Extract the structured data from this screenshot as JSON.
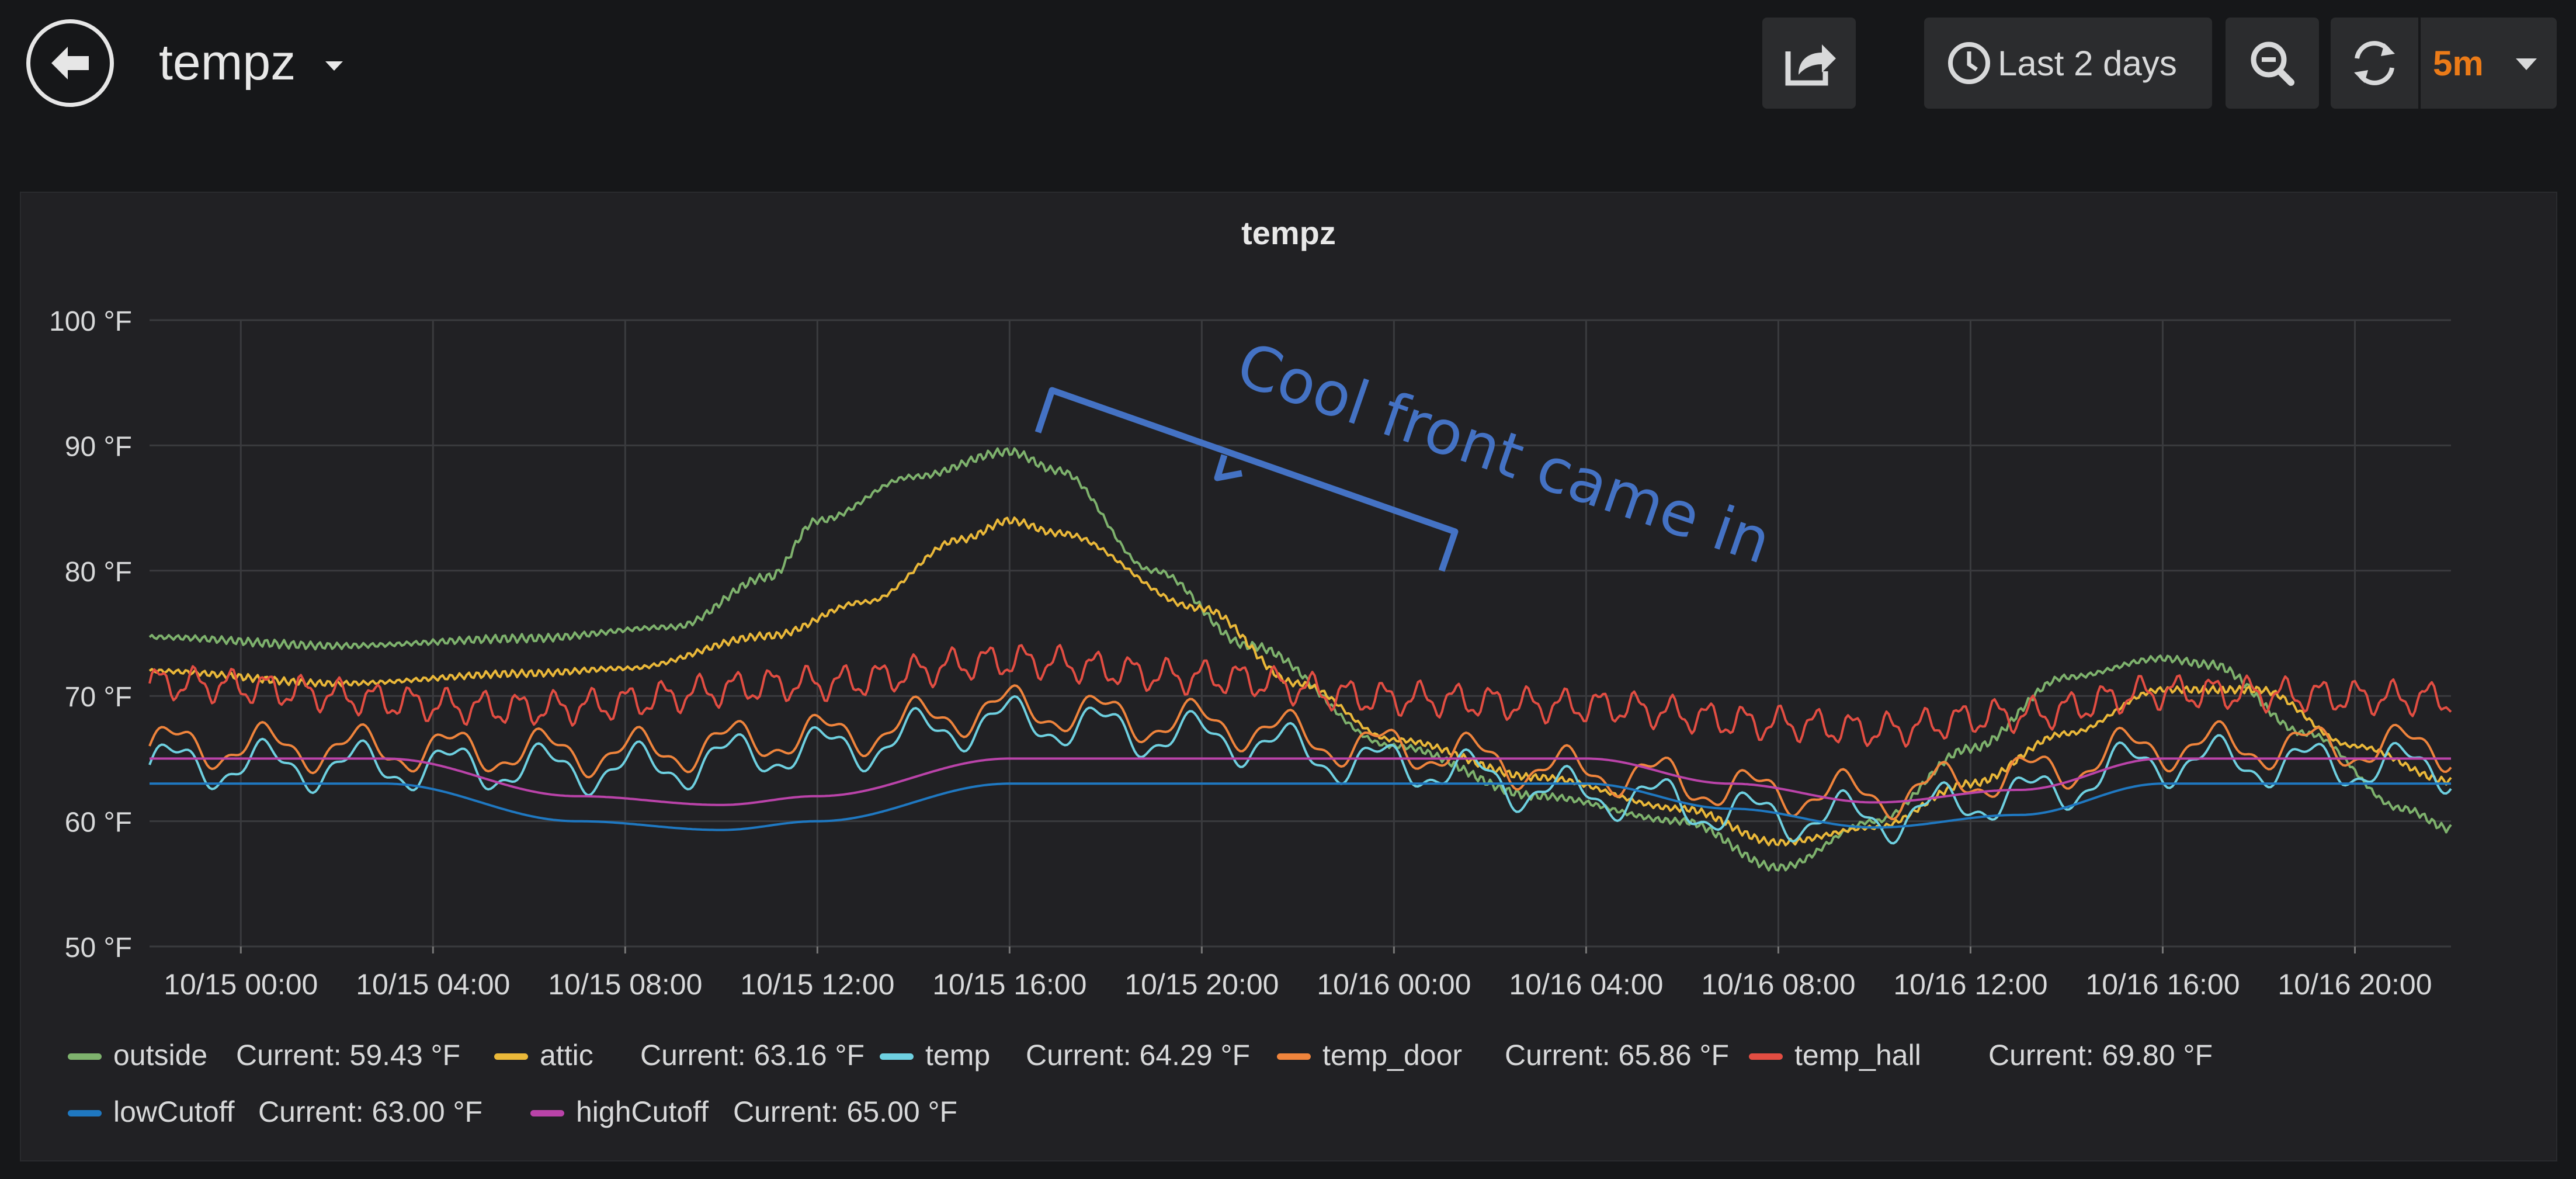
{
  "dashboard": {
    "title": "tempz",
    "time_range": "Last 2 days",
    "refresh_interval": "5m",
    "icons": {
      "back": "arrow-left-circle-icon",
      "title_menu": "caret-down-icon",
      "share": "share-icon",
      "time": "clock-icon",
      "zoom_out": "zoom-out-icon",
      "refresh": "refresh-icon",
      "interval_menu": "caret-down-icon"
    }
  },
  "chart_data": {
    "type": "line",
    "title": "tempz",
    "ylim": [
      50,
      100
    ],
    "y_ticks": [
      "100 °F",
      "90 °F",
      "80 °F",
      "70 °F",
      "60 °F",
      "50 °F"
    ],
    "x_ticks": [
      "10/15 00:00",
      "10/15 04:00",
      "10/15 08:00",
      "10/15 12:00",
      "10/15 16:00",
      "10/15 20:00",
      "10/16 00:00",
      "10/16 04:00",
      "10/16 08:00",
      "10/16 12:00",
      "10/16 16:00",
      "10/16 20:00"
    ],
    "xlim": [
      "10/14 22:06",
      "10/16 22:00"
    ],
    "grid": true,
    "legend_position": "bottom",
    "current_label": "Current:",
    "annotation": "Cool front came in",
    "series": [
      {
        "name": "outside",
        "current": "59.43 °F",
        "color": "#7eb26d",
        "x": [
          "10/14 22:06",
          "10/15 02:00",
          "10/15 06:00",
          "10/15 09:00",
          "10/15 11:00",
          "10/15 12:00",
          "10/15 14:00",
          "10/15 16:00",
          "10/15 17:00",
          "10/15 19:00",
          "10/15 21:00",
          "10/16 00:00",
          "10/16 03:00",
          "10/16 06:00",
          "10/16 08:00",
          "10/16 10:00",
          "10/16 12:00",
          "10/16 14:00",
          "10/16 16:00",
          "10/16 17:00",
          "10/16 19:00",
          "10/16 21:00",
          "10/16 22:00"
        ],
        "y": [
          74.7,
          74,
          74.6,
          75.5,
          79.5,
          84,
          87.5,
          89.5,
          88,
          80,
          74,
          66,
          62,
          60,
          56.3,
          60,
          65.8,
          71.5,
          73,
          72.5,
          67,
          61,
          59.4
        ]
      },
      {
        "name": "attic",
        "current": "63.16 °F",
        "color": "#eab839",
        "x": [
          "10/14 22:06",
          "10/15 02:00",
          "10/15 06:00",
          "10/15 08:00",
          "10/15 11:00",
          "10/15 13:00",
          "10/15 15:00",
          "10/15 16:00",
          "10/15 17:00",
          "10/15 20:00",
          "10/15 22:00",
          "10/16 00:00",
          "10/16 03:00",
          "10/16 06:00",
          "10/16 08:00",
          "10/16 10:00",
          "10/16 12:00",
          "10/16 14:00",
          "10/16 16:00",
          "10/16 18:00",
          "10/16 20:00",
          "10/16 22:00"
        ],
        "y": [
          72,
          71,
          71.8,
          72.2,
          74.8,
          77.5,
          82.5,
          84,
          83,
          77,
          71,
          66.5,
          63.5,
          61,
          58.3,
          59.5,
          63,
          67,
          70.5,
          70.5,
          66,
          63.2
        ]
      },
      {
        "name": "temp",
        "current": "64.29 °F",
        "color": "#6ed0e0",
        "x": [
          "10/14 22:06",
          "10/15 08:00",
          "10/15 12:00",
          "10/15 16:00",
          "10/15 20:00",
          "10/16 00:00",
          "10/16 04:00",
          "10/16 08:00",
          "10/16 10:00",
          "10/16 13:00",
          "10/16 16:00",
          "10/16 22:00"
        ],
        "y": [
          64.5,
          64.2,
          65.7,
          68,
          66.7,
          64.5,
          62.2,
          60.4,
          60.3,
          62,
          64.8,
          64.3
        ]
      },
      {
        "name": "temp_door",
        "current": "65.86 °F",
        "color": "#ef843c",
        "x": [
          "10/14 22:06",
          "10/15 08:00",
          "10/15 12:00",
          "10/15 16:00",
          "10/15 20:00",
          "10/16 00:00",
          "10/16 04:00",
          "10/16 08:00",
          "10/16 10:00",
          "10/16 13:00",
          "10/16 16:00",
          "10/16 22:00"
        ],
        "y": [
          66,
          65.5,
          66.8,
          69,
          67.8,
          65.8,
          64,
          62.3,
          62.1,
          63.7,
          66,
          65.9
        ]
      },
      {
        "name": "temp_hall",
        "current": "69.80 °F",
        "color": "#e24d42",
        "x": [
          "10/14 22:06",
          "10/15 06:00",
          "10/15 12:00",
          "10/15 16:00",
          "10/15 20:00",
          "10/16 00:00",
          "10/16 04:00",
          "10/16 08:00",
          "10/16 10:00",
          "10/16 13:00",
          "10/16 16:00",
          "10/16 22:00"
        ],
        "y": [
          71,
          69,
          71,
          72.8,
          71.5,
          69.8,
          69.2,
          67.8,
          67.3,
          68.5,
          70.3,
          69.8
        ]
      },
      {
        "name": "lowCutoff",
        "current": "63.00 °F",
        "color": "#1f78c1",
        "x": [
          "10/14 22:06",
          "10/15 03:00",
          "10/15 07:00",
          "10/15 10:00",
          "10/15 12:00",
          "10/15 16:00",
          "10/15 20:00",
          "10/16 04:00",
          "10/16 07:00",
          "10/16 10:00",
          "10/16 13:00",
          "10/16 16:00",
          "10/16 22:00"
        ],
        "y": [
          63,
          63,
          60,
          59.3,
          60,
          63,
          63,
          63,
          61,
          59.5,
          60.5,
          63,
          63
        ]
      },
      {
        "name": "highCutoff",
        "current": "65.00 °F",
        "color": "#ba43a9",
        "x": [
          "10/14 22:06",
          "10/15 03:00",
          "10/15 07:00",
          "10/15 10:00",
          "10/15 12:00",
          "10/15 16:00",
          "10/15 20:00",
          "10/16 04:00",
          "10/16 07:00",
          "10/16 10:00",
          "10/16 13:00",
          "10/16 16:00",
          "10/16 22:00"
        ],
        "y": [
          65,
          65,
          62,
          61.3,
          62,
          65,
          65,
          65,
          63,
          61.5,
          62.5,
          65,
          65
        ]
      }
    ]
  }
}
